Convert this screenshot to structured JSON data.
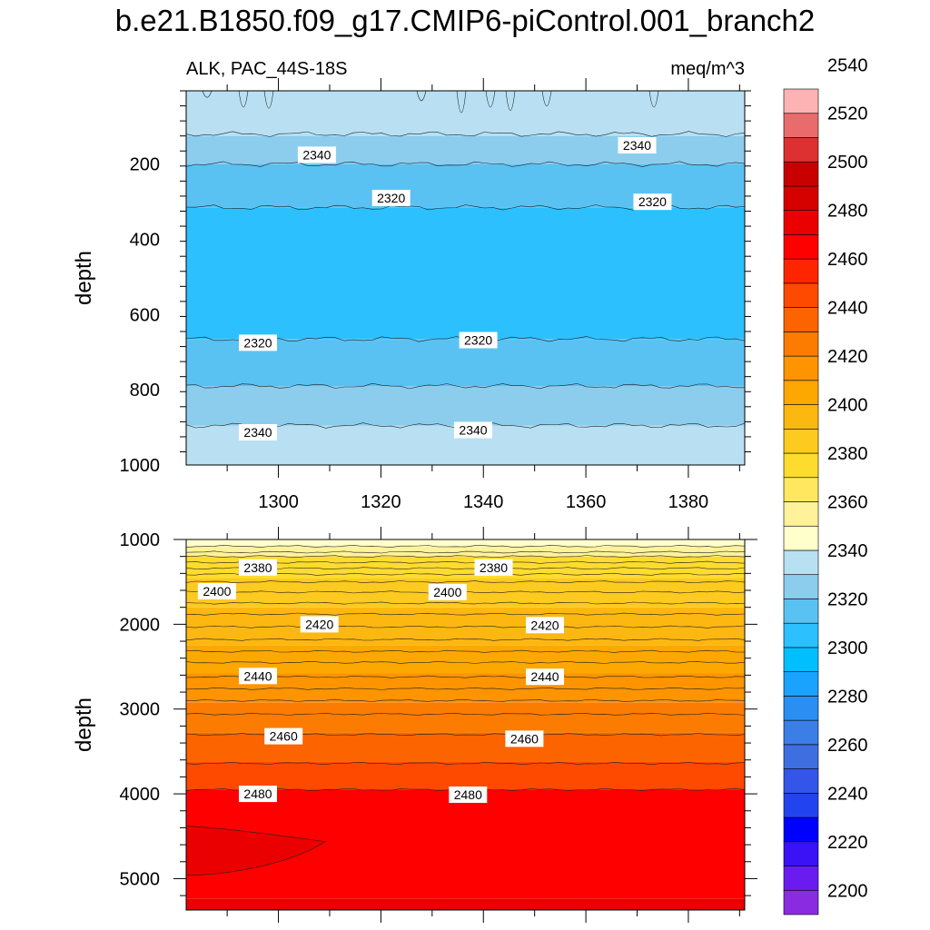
{
  "chart_data": {
    "type": "heatmap",
    "title": "b.e21.B1850.f09_g17.CMIP6-piControl.001_branch2",
    "subtitle_left": "ALK, PAC_44S-18S",
    "subtitle_right": "meq/m^3",
    "x": {
      "range": [
        1282,
        1391
      ],
      "ticks": [
        1300,
        1320,
        1340,
        1360,
        1380
      ],
      "tick_labels": [
        "1300",
        "1320",
        "1340",
        "1360",
        "1380"
      ]
    },
    "colorbar": {
      "levels": [
        2200,
        2210,
        2220,
        2230,
        2240,
        2250,
        2260,
        2270,
        2280,
        2290,
        2300,
        2310,
        2320,
        2330,
        2340,
        2350,
        2360,
        2370,
        2380,
        2390,
        2400,
        2410,
        2420,
        2430,
        2440,
        2450,
        2460,
        2470,
        2480,
        2490,
        2500,
        2510,
        2520,
        2530,
        2540,
        2550
      ],
      "tick_labels": [
        "2200",
        "2220",
        "2240",
        "2260",
        "2280",
        "2300",
        "2320",
        "2340",
        "2360",
        "2380",
        "2400",
        "2420",
        "2440",
        "2460",
        "2480",
        "2500",
        "2520",
        "2540"
      ],
      "colors": [
        "#8a2be2",
        "#6a1cf0",
        "#3a12f5",
        "#0000ff",
        "#2244ee",
        "#3355e8",
        "#3f6ee0",
        "#3b7ee6",
        "#2a8ef2",
        "#1aa2ff",
        "#00bfff",
        "#2dc0ff",
        "#5ac2f2",
        "#8ccdee",
        "#b8e0f2",
        "#ffffcc",
        "#fff29a",
        "#ffe860",
        "#fedc2e",
        "#fdca20",
        "#fcb810",
        "#fca800",
        "#fd9400",
        "#fb7c00",
        "#fc6400",
        "#fd4a00",
        "#ff2500",
        "#ff0000",
        "#ea0000",
        "#d50000",
        "#c80000",
        "#dd3030",
        "#ea6b6b",
        "#fdb3b3"
      ]
    },
    "panels": [
      {
        "name": "upper",
        "ylabel": "depth",
        "yrange": [
          5,
          1000
        ],
        "yticks": [
          200,
          400,
          600,
          800,
          1000
        ],
        "ytick_labels": [
          "200",
          "400",
          "600",
          "800",
          "1000"
        ],
        "bands": [
          {
            "from": 5,
            "to": 125,
            "value": 2345
          },
          {
            "from": 125,
            "to": 200,
            "value": 2335
          },
          {
            "from": 200,
            "to": 315,
            "value": 2325
          },
          {
            "from": 315,
            "to": 665,
            "value": 2315
          },
          {
            "from": 665,
            "to": 790,
            "value": 2325
          },
          {
            "from": 790,
            "to": 895,
            "value": 2335
          },
          {
            "from": 895,
            "to": 1000,
            "value": 2345
          }
        ],
        "contours": [
          120,
          200,
          315,
          665,
          790,
          895
        ],
        "contour_labels": [
          {
            "text": "2340",
            "x": 1307.5,
            "y": 175
          },
          {
            "text": "2340",
            "x": 1370,
            "y": 150
          },
          {
            "text": "2320",
            "x": 1322,
            "y": 290
          },
          {
            "text": "2320",
            "x": 1373,
            "y": 300
          },
          {
            "text": "2320",
            "x": 1296,
            "y": 675
          },
          {
            "text": "2320",
            "x": 1339,
            "y": 668
          },
          {
            "text": "2340",
            "x": 1296,
            "y": 913
          },
          {
            "text": "2340",
            "x": 1338,
            "y": 907
          }
        ]
      },
      {
        "name": "lower",
        "ylabel": "depth",
        "yrange": [
          1000,
          5370
        ],
        "yticks": [
          1000,
          2000,
          3000,
          4000,
          5000
        ],
        "ytick_labels": [
          "1000",
          "2000",
          "3000",
          "4000",
          "5000"
        ],
        "bands": [
          {
            "from": 1000,
            "to": 1080,
            "value": 2355
          },
          {
            "from": 1080,
            "to": 1200,
            "value": 2365
          },
          {
            "from": 1200,
            "to": 1460,
            "value": 2385
          },
          {
            "from": 1460,
            "to": 1800,
            "value": 2395
          },
          {
            "from": 1800,
            "to": 2250,
            "value": 2405
          },
          {
            "from": 2250,
            "to": 2580,
            "value": 2415
          },
          {
            "from": 2580,
            "to": 2920,
            "value": 2425
          },
          {
            "from": 2920,
            "to": 3280,
            "value": 2435
          },
          {
            "from": 3280,
            "to": 3620,
            "value": 2445
          },
          {
            "from": 3620,
            "to": 3950,
            "value": 2455
          },
          {
            "from": 3950,
            "to": 5240,
            "value": 2475
          },
          {
            "from": 5240,
            "to": 5370,
            "value": 2485
          }
        ],
        "contours": [
          1080,
          1150,
          1200,
          1270,
          1340,
          1410,
          1500,
          1620,
          1750,
          1880,
          2030,
          2180,
          2320,
          2450,
          2620,
          2760,
          2900,
          3060,
          3300,
          3640,
          3950
        ],
        "contour_labels": [
          {
            "text": "2380",
            "x": 1296,
            "y": 1330
          },
          {
            "text": "2380",
            "x": 1342,
            "y": 1330
          },
          {
            "text": "2400",
            "x": 1288,
            "y": 1610
          },
          {
            "text": "2400",
            "x": 1333,
            "y": 1620
          },
          {
            "text": "2420",
            "x": 1308,
            "y": 2000
          },
          {
            "text": "2420",
            "x": 1352,
            "y": 2010
          },
          {
            "text": "2440",
            "x": 1296,
            "y": 2610
          },
          {
            "text": "2440",
            "x": 1352,
            "y": 2620
          },
          {
            "text": "2460",
            "x": 1301,
            "y": 3320
          },
          {
            "text": "2460",
            "x": 1348,
            "y": 3350
          },
          {
            "text": "2480",
            "x": 1296,
            "y": 4000
          },
          {
            "text": "2480",
            "x": 1337,
            "y": 4010
          }
        ]
      }
    ]
  }
}
